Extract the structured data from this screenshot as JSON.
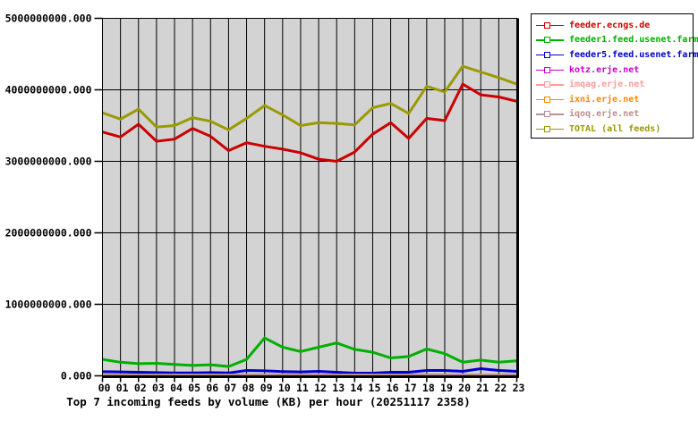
{
  "title": "Top 7 incoming feeds by volume (KB) per hour (20251117 2358)",
  "chart_data": {
    "type": "line",
    "title": "Top 7 incoming feeds by volume (KB) per hour (20251117 2358)",
    "unit": "KB",
    "x_categories": [
      "00",
      "01",
      "02",
      "03",
      "04",
      "05",
      "06",
      "07",
      "08",
      "09",
      "10",
      "11",
      "12",
      "13",
      "14",
      "15",
      "16",
      "17",
      "18",
      "19",
      "20",
      "21",
      "22",
      "23"
    ],
    "ylim": [
      0,
      5000000000
    ],
    "ytick_interval": 1000000000,
    "ytick_labels_bottom_up": [
      "0.000",
      "1000000000.000",
      "2000000000.000",
      "3000000000.000",
      "4000000000.000",
      "5000000000.000"
    ],
    "grid": "both",
    "grid_color": "#000000",
    "plot_background": "#d3d3d3",
    "legend_position": "outside-top-right",
    "series": [
      {
        "name": "feeder.ecngs.de",
        "color": "#cc0000",
        "values": [
          3410000000,
          3340000000,
          3520000000,
          3280000000,
          3310000000,
          3460000000,
          3350000000,
          3150000000,
          3260000000,
          3210000000,
          3170000000,
          3120000000,
          3030000000,
          3000000000,
          3130000000,
          3380000000,
          3540000000,
          3320000000,
          3600000000,
          3570000000,
          4080000000,
          3930000000,
          3900000000,
          3840000000
        ]
      },
      {
        "name": "feeder1.feed.usenet.farm",
        "color": "#00b000",
        "values": [
          230000000,
          190000000,
          170000000,
          175000000,
          160000000,
          145000000,
          155000000,
          130000000,
          230000000,
          530000000,
          400000000,
          340000000,
          400000000,
          460000000,
          370000000,
          330000000,
          250000000,
          270000000,
          375000000,
          310000000,
          190000000,
          220000000,
          190000000,
          210000000
        ]
      },
      {
        "name": "feeder5.feed.usenet.farm",
        "color": "#0000cc",
        "values": [
          58000000,
          55000000,
          50000000,
          45000000,
          40000000,
          40000000,
          45000000,
          40000000,
          75000000,
          70000000,
          60000000,
          55000000,
          62000000,
          50000000,
          38000000,
          38000000,
          50000000,
          50000000,
          75000000,
          75000000,
          62000000,
          100000000,
          75000000,
          62000000
        ]
      },
      {
        "name": "kotz.erje.net",
        "color": "#cc00cc",
        "values": [
          5000000,
          5000000,
          5000000,
          5000000,
          5000000,
          5000000,
          5000000,
          5000000,
          5000000,
          5000000,
          5000000,
          5000000,
          5000000,
          5000000,
          5000000,
          5000000,
          5000000,
          5000000,
          5000000,
          5000000,
          5000000,
          5000000,
          5000000,
          5000000
        ]
      },
      {
        "name": "imqag.erje.net",
        "color": "#ff9999",
        "values": [
          4000000,
          4000000,
          4000000,
          4000000,
          4000000,
          4000000,
          4000000,
          4000000,
          4000000,
          4000000,
          4000000,
          4000000,
          4000000,
          4000000,
          4000000,
          4000000,
          4000000,
          4000000,
          4000000,
          4000000,
          4000000,
          4000000,
          4000000,
          4000000
        ]
      },
      {
        "name": "ixni.erje.net",
        "color": "#ff8800",
        "values": [
          4000000,
          4000000,
          4000000,
          4000000,
          4000000,
          4000000,
          4000000,
          4000000,
          4000000,
          4000000,
          4000000,
          4000000,
          4000000,
          4000000,
          4000000,
          4000000,
          4000000,
          4000000,
          4000000,
          4000000,
          4000000,
          4000000,
          4000000,
          4000000
        ]
      },
      {
        "name": "iqoq.erje.net",
        "color": "#bc8f8f",
        "values": [
          13000000,
          13000000,
          13000000,
          13000000,
          13000000,
          13000000,
          13000000,
          13000000,
          13000000,
          14000000,
          14000000,
          13000000,
          13000000,
          13000000,
          13000000,
          13000000,
          13000000,
          13000000,
          14000000,
          14000000,
          13000000,
          13000000,
          13000000,
          13000000
        ]
      },
      {
        "name": "TOTAL (all feeds)",
        "color": "#9a9a00",
        "values": [
          3680000000,
          3590000000,
          3730000000,
          3480000000,
          3500000000,
          3610000000,
          3560000000,
          3440000000,
          3600000000,
          3780000000,
          3650000000,
          3500000000,
          3540000000,
          3530000000,
          3510000000,
          3750000000,
          3810000000,
          3670000000,
          4050000000,
          3970000000,
          4330000000,
          4250000000,
          4170000000,
          4080000000
        ]
      }
    ]
  }
}
